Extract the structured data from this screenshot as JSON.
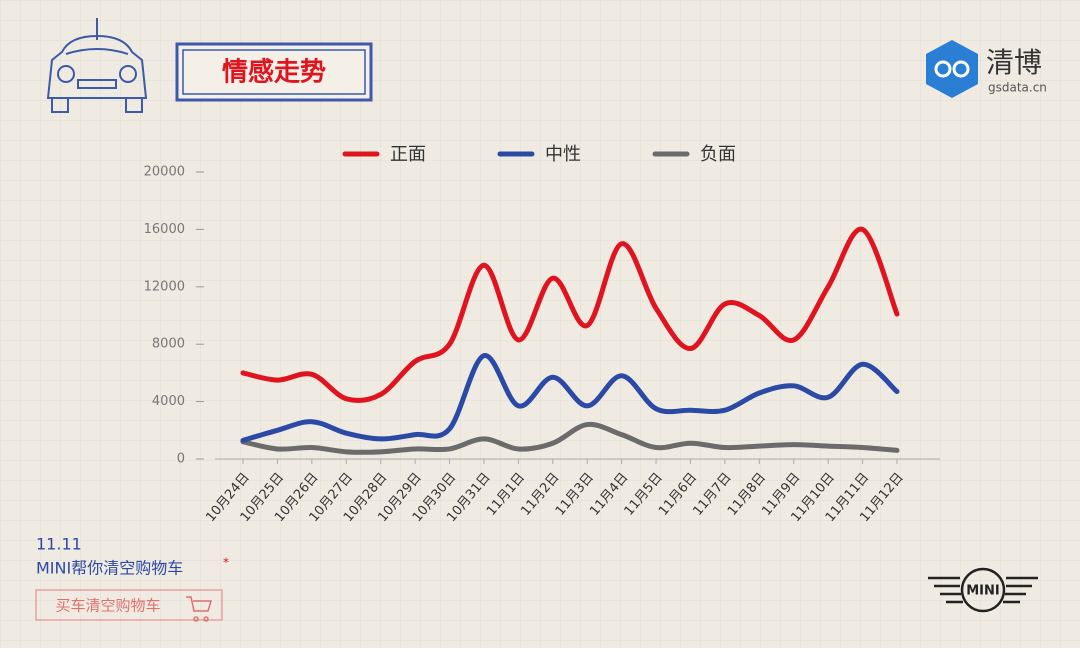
{
  "page": {
    "title": "情感走势",
    "brand": "清博",
    "brand_url": "gsdata.cn",
    "date": "11.11",
    "slogan": "MINI帮你清空购物车",
    "slogan_mark": "*",
    "button": "买车清空购物车",
    "logo": "MINI"
  },
  "chart_data": {
    "type": "line",
    "categories": [
      "10月24日",
      "10月25日",
      "10月26日",
      "10月27日",
      "10月28日",
      "10月29日",
      "10月30日",
      "10月31日",
      "11月1日",
      "11月2日",
      "11月3日",
      "11月4日",
      "11月5日",
      "11月6日",
      "11月7日",
      "11月8日",
      "11月9日",
      "11月10日",
      "11月11日",
      "11月12日"
    ],
    "series": [
      {
        "name": "正面",
        "color": "#e0141e",
        "values": [
          6000,
          5500,
          5900,
          4200,
          4500,
          6800,
          8000,
          13500,
          8300,
          12600,
          9300,
          15000,
          10500,
          7700,
          10800,
          10000,
          8300,
          12000,
          16000,
          10100
        ]
      },
      {
        "name": "中性",
        "color": "#2b4aa6",
        "values": [
          1300,
          2000,
          2600,
          1800,
          1400,
          1700,
          2100,
          7200,
          3700,
          5700,
          3700,
          5800,
          3500,
          3400,
          3400,
          4600,
          5100,
          4300,
          6600,
          4700
        ]
      },
      {
        "name": "负面",
        "color": "#6b6b6b",
        "values": [
          1200,
          700,
          800,
          500,
          500,
          700,
          700,
          1400,
          700,
          1100,
          2400,
          1700,
          800,
          1100,
          800,
          900,
          1000,
          900,
          800,
          600
        ]
      }
    ],
    "ylim": [
      0,
      20000
    ],
    "yticks": [
      0,
      4000,
      8000,
      12000,
      16000,
      20000
    ],
    "legend": "top"
  }
}
